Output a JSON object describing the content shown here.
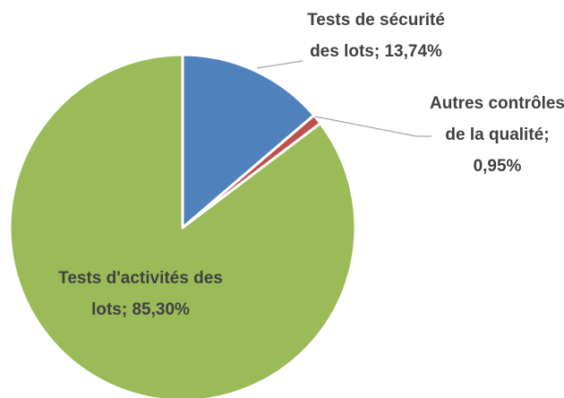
{
  "chart_data": {
    "type": "pie",
    "categories": [
      "Tests de sécurité des lots",
      "Autres contrôles de la qualité",
      "Tests d'activités des lots"
    ],
    "values": [
      13.74,
      0.95,
      85.3
    ],
    "value_labels": [
      "13,74%",
      "0,95%",
      "85,30%"
    ],
    "label_separator": "; ",
    "colors": [
      "#4f81bd",
      "#c0504d",
      "#9bbb59"
    ]
  }
}
